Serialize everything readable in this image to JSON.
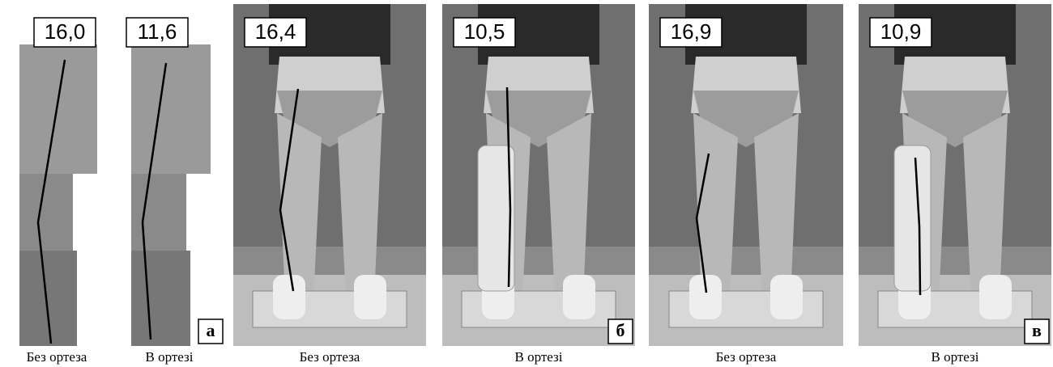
{
  "panels": [
    {
      "measure": "16,0",
      "caption": "Без ортеза"
    },
    {
      "measure": "11,6",
      "caption": "В ортезі"
    },
    {
      "measure": "16,4",
      "caption": "Без ортеза"
    },
    {
      "measure": "10,5",
      "caption": "В ортезі"
    },
    {
      "measure": "16,9",
      "caption": "Без ортеза"
    },
    {
      "measure": "10,9",
      "caption": "В ортезі"
    }
  ],
  "group_labels": [
    "а",
    "б",
    "в"
  ]
}
